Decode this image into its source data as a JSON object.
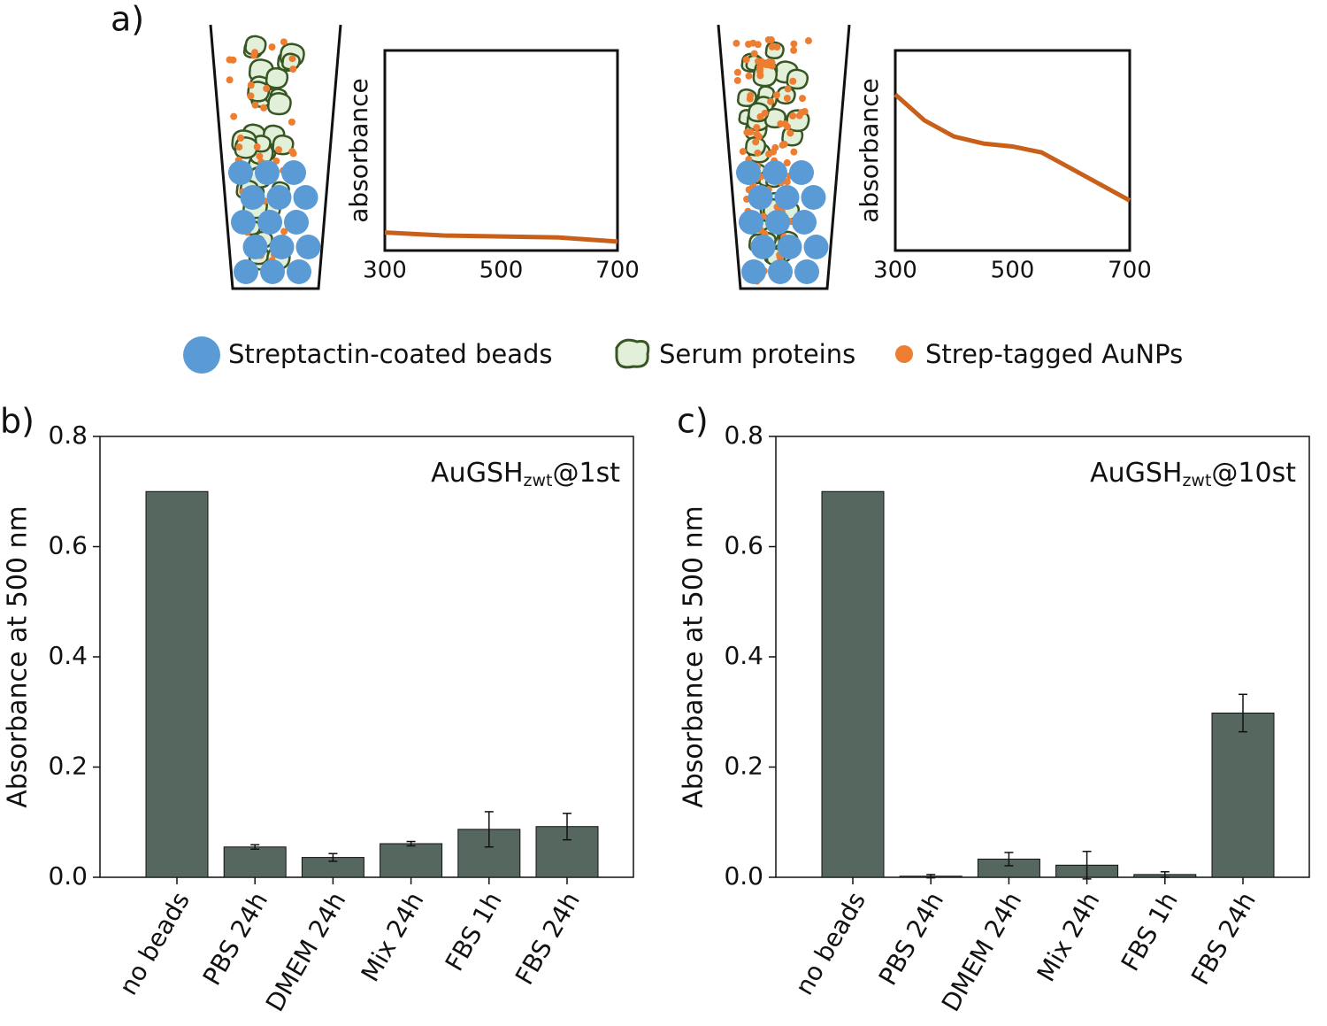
{
  "figure": {
    "panel_a": "a)",
    "legend": [
      "Streptactin-coated beads",
      "Serum proteins",
      "Strep-tagged AuNPs"
    ]
  },
  "chart_data": [
    {
      "type": "line",
      "panel": null,
      "ylabel": "absorbance",
      "xlim": [
        300,
        700
      ],
      "ylim": [
        0,
        1
      ],
      "xticks": [
        300,
        500,
        700
      ],
      "x": [
        300,
        400,
        500,
        600,
        700
      ],
      "series": [
        {
          "color": "#c9601a",
          "values": [
            0.09,
            0.075,
            0.07,
            0.065,
            0.045
          ]
        }
      ]
    },
    {
      "type": "line",
      "panel": null,
      "ylabel": "absorbance",
      "xlim": [
        300,
        700
      ],
      "ylim": [
        0,
        1
      ],
      "xticks": [
        300,
        500,
        700
      ],
      "x": [
        300,
        350,
        400,
        450,
        500,
        550,
        600,
        650,
        700
      ],
      "series": [
        {
          "color": "#c9601a",
          "values": [
            0.78,
            0.65,
            0.57,
            0.535,
            0.52,
            0.49,
            0.41,
            0.33,
            0.25
          ]
        }
      ]
    },
    {
      "type": "bar",
      "panel": "b)",
      "ylabel": "Absorbance at 500 nm",
      "annotation": {
        "main": "AuGSH",
        "sub": "zwt",
        "rest": "@1st"
      },
      "categories": [
        "no beads",
        "PBS 24h",
        "DMEM 24h",
        "Mix 24h",
        "FBS 1h",
        "FBS 24h"
      ],
      "values": [
        0.7,
        0.055,
        0.036,
        0.061,
        0.087,
        0.092
      ],
      "errors": [
        null,
        0.004,
        0.007,
        0.004,
        0.032,
        0.024
      ],
      "color": "#56675f",
      "ylim": [
        0,
        0.8
      ],
      "yticks": [
        {
          "value": 0,
          "label": "0.0"
        },
        0.2,
        0.4,
        0.6,
        0.8
      ]
    },
    {
      "type": "bar",
      "panel": "c)",
      "ylabel": "Absorbance at 500 nm",
      "annotation": {
        "main": "AuGSH",
        "sub": "zwt",
        "rest": "@10st"
      },
      "categories": [
        "no beads",
        "PBS 24h",
        "DMEM 24h",
        "Mix 24h",
        "FBS 1h",
        "FBS 24h"
      ],
      "values": [
        0.7,
        0.002,
        0.033,
        0.022,
        0.005,
        0.298
      ],
      "errors": [
        null,
        0.003,
        0.012,
        0.025,
        0.005,
        0.034
      ],
      "color": "#56675f",
      "ylim": [
        0,
        0.8
      ],
      "yticks": [
        {
          "value": 0,
          "label": "0.0"
        },
        0.2,
        0.4,
        0.6,
        0.8
      ]
    }
  ]
}
